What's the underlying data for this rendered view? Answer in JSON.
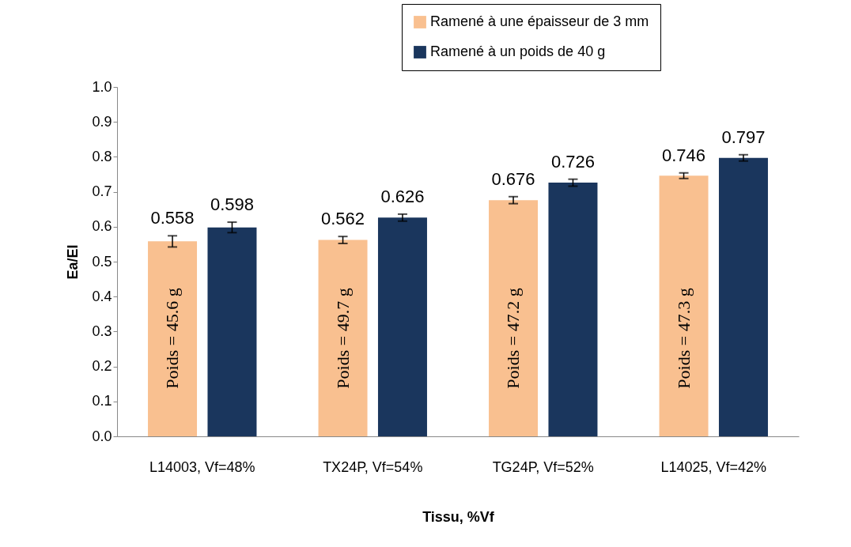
{
  "chart_data": {
    "type": "bar",
    "xlabel": "Tissu, %Vf",
    "ylabel": "Ea/EI",
    "categories": [
      "L14003, Vf=48%",
      "TX24P, Vf=54%",
      "TG24P, Vf=52%",
      "L14025, Vf=42%"
    ],
    "series": [
      {
        "name": "Ramené à une épaisseur de 3 mm",
        "color": "#f9c090",
        "values": [
          0.558,
          0.562,
          0.676,
          0.746
        ],
        "errors": [
          0.016,
          0.01,
          0.01,
          0.008
        ]
      },
      {
        "name": "Ramené à un poids de 40 g",
        "color": "#1a365d",
        "values": [
          0.598,
          0.626,
          0.726,
          0.797
        ],
        "errors": [
          0.015,
          0.01,
          0.01,
          0.009
        ]
      }
    ],
    "ylim": [
      0.0,
      1.0
    ],
    "yticks": [
      {
        "value": 0,
        "label": "0.0"
      },
      0.1,
      0.2,
      0.3,
      0.4,
      0.5,
      0.6,
      0.7,
      0.8,
      0.9,
      {
        "value": 1,
        "label": "1.0"
      }
    ],
    "data_labels": true,
    "grid": false,
    "legend": "top right",
    "annotations": [
      "Poids = 45.6 g",
      "Poids = 49.7 g",
      "Poids = 47.2 g",
      "Poids = 47.3 g"
    ]
  }
}
